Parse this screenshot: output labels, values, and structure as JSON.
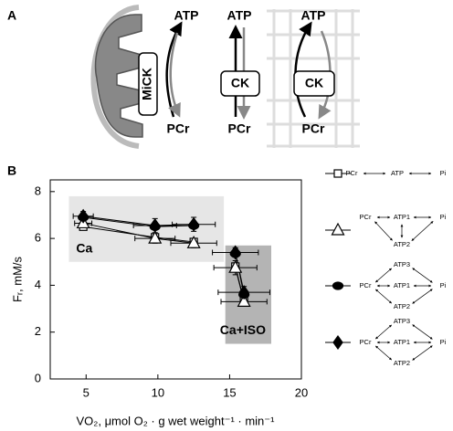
{
  "panel_labels": [
    "A",
    "B"
  ],
  "diagram": {
    "mitochondrion": {
      "top": "ATP",
      "bottom": "PCr",
      "enzyme": "MiCK"
    },
    "cytosol": {
      "top": "ATP",
      "bottom": "PCr",
      "enzyme": "CK"
    },
    "myofibril": {
      "top": "ATP",
      "bottom": "PCr",
      "enzyme": "CK"
    }
  },
  "chart_data": {
    "type": "scatter",
    "xlabel": "VO₂, μmol O₂ · g wet weight⁻¹ · min⁻¹",
    "ylabel": "Fᵣ, mM/s",
    "xlim": [
      2.5,
      20
    ],
    "xticks": [
      5,
      10,
      15,
      20
    ],
    "ylim": [
      0,
      8.5
    ],
    "yticks": [
      0,
      2,
      4,
      6,
      8
    ],
    "regions": [
      {
        "label": "Ca",
        "x": [
          3.8,
          14.6
        ],
        "y": [
          5,
          7.8
        ],
        "color": "#e6e6e6"
      },
      {
        "label": "Ca+ISO",
        "x": [
          14.7,
          17.9
        ],
        "y": [
          1.5,
          5.7
        ],
        "color": "#b4b4b4"
      }
    ],
    "x": [
      4.8,
      9.8,
      12.5,
      15.4,
      16.0
    ],
    "series": [
      {
        "marker": "square",
        "color": "#000000",
        "values": [
          6.5,
          6.05,
          5.85,
          4.8,
          3.35
        ],
        "model_nodes": [
          "PCr",
          "ATP",
          "Pi"
        ]
      },
      {
        "marker": "triangle",
        "color": "#000000",
        "values": [
          6.65,
          6.0,
          5.8,
          4.75,
          3.3
        ],
        "x_err": [
          0.6,
          1.4,
          1.6,
          1.5,
          1.6
        ],
        "y_err": [
          0.15,
          0.2,
          0.2,
          0.3,
          0.2
        ],
        "model_nodes": [
          "PCr",
          "ATP1",
          "Pi",
          "ATP2"
        ]
      },
      {
        "marker": "circle",
        "color": "#000000",
        "values": [
          6.9,
          6.5,
          6.55,
          5.35,
          3.6
        ],
        "model_nodes": [
          "ATP3",
          "PCr",
          "ATP1",
          "Pi",
          "ATP2"
        ]
      },
      {
        "marker": "diamond",
        "color": "#000000",
        "values": [
          6.95,
          6.55,
          6.6,
          5.4,
          3.7
        ],
        "x_err": [
          0.7,
          1.5,
          1.5,
          1.6,
          1.8
        ],
        "y_err": [
          0.2,
          0.3,
          0.3,
          0.2,
          0.25
        ],
        "model_nodes": [
          "ATP3",
          "PCr",
          "ATP1",
          "Pi",
          "ATP2"
        ]
      }
    ]
  }
}
